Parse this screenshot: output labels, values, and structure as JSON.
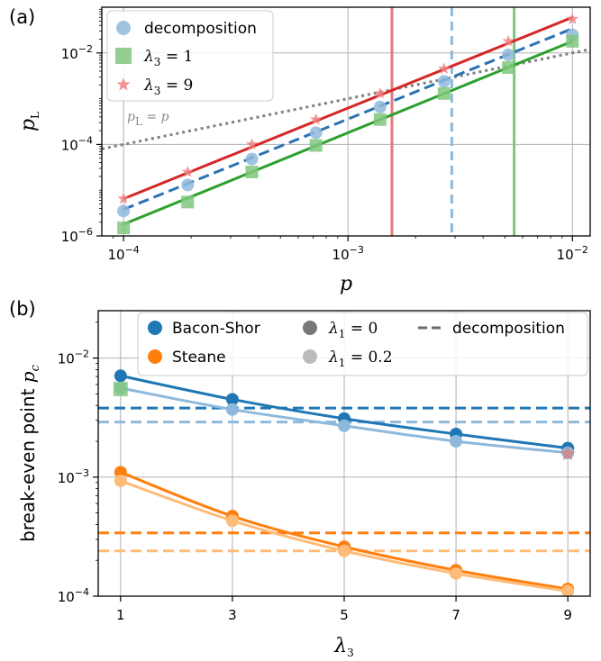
{
  "chart_data": [
    {
      "panel": "(a)",
      "type": "line",
      "scale": "log-log",
      "xlabel": "p",
      "ylabel": "p_L",
      "xlim": [
        8e-05,
        0.012
      ],
      "ylim": [
        1e-06,
        0.1
      ],
      "xticks": [
        {
          "v": 0.0001,
          "label": "10^-4"
        },
        {
          "v": 0.001,
          "label": "10^-3"
        },
        {
          "v": 0.01,
          "label": "10^-2"
        }
      ],
      "yticks": [
        {
          "v": 1e-06,
          "label": "10^-6"
        },
        {
          "v": 0.0001,
          "label": "10^-4"
        },
        {
          "v": 0.01,
          "label": "10^-2"
        }
      ],
      "grid": true,
      "legend_position": "top-left",
      "x": [
        0.0001,
        0.000193,
        0.000373,
        0.00072,
        0.00139,
        0.00268,
        0.00518,
        0.01
      ],
      "series": [
        {
          "name": "decomposition",
          "marker": "circle",
          "color": "#8fb9dc",
          "line_style": "dashed",
          "line_color": "#2a72b3",
          "values": [
            3.5e-06,
            1.3e-05,
            4.8e-05,
            0.00018,
            0.00066,
            0.0024,
            0.0091,
            0.025
          ],
          "fit": [
            [
              0.0001,
              3.8e-06
            ],
            [
              0.01,
              0.034
            ]
          ]
        },
        {
          "name": "λ3 = 1",
          "marker": "square",
          "color": "#7fc77c",
          "line_style": "solid",
          "line_color": "#2ca02c",
          "values": [
            1.5e-06,
            5.5e-06,
            2.5e-05,
            9.5e-05,
            0.00035,
            0.0013,
            0.0048,
            0.018
          ],
          "fit": [
            [
              0.0001,
              1.8e-06
            ],
            [
              0.01,
              0.018
            ]
          ]
        },
        {
          "name": "λ3 = 9",
          "marker": "star",
          "color": "#f08080",
          "line_style": "solid",
          "line_color": "#d62728",
          "values": [
            6.5e-06,
            2.5e-05,
            0.0001,
            0.00035,
            0.0013,
            0.0045,
            0.018,
            0.055
          ],
          "fit": [
            [
              0.0001,
              6.5e-06
            ],
            [
              0.01,
              0.06
            ]
          ]
        }
      ],
      "reference_line": {
        "label": "p_L = p",
        "points": [
          [
            8e-05,
            8e-05
          ],
          [
            0.012,
            0.012
          ]
        ],
        "color": "#7f7f7f",
        "line_style": "dotted"
      },
      "vertical_lines": [
        {
          "x": 0.00157,
          "color": "#e37a7a",
          "line_style": "solid"
        },
        {
          "x": 0.0029,
          "color": "#8fb9dc",
          "line_style": "dashed"
        },
        {
          "x": 0.0055,
          "color": "#7fc77c",
          "line_style": "solid"
        }
      ]
    },
    {
      "panel": "(b)",
      "type": "line",
      "scale": "log-y",
      "xlabel": "λ3",
      "ylabel": "break-even point p_c",
      "xlim": [
        0.6,
        9.4
      ],
      "ylim": [
        0.0001,
        0.025
      ],
      "xticks": [
        {
          "v": 1,
          "label": "1"
        },
        {
          "v": 3,
          "label": "3"
        },
        {
          "v": 5,
          "label": "5"
        },
        {
          "v": 7,
          "label": "7"
        },
        {
          "v": 9,
          "label": "9"
        }
      ],
      "yticks": [
        {
          "v": 0.0001,
          "label": "10^-4"
        },
        {
          "v": 0.001,
          "label": "10^-3"
        },
        {
          "v": 0.01,
          "label": "10^-2"
        }
      ],
      "grid": true,
      "legend_position": "top-right",
      "legend": [
        "Bacon-Shor",
        "Steane",
        "λ1 = 0",
        "λ1 = 0.2",
        "decomposition"
      ],
      "x": [
        1,
        3,
        5,
        7,
        9
      ],
      "series": [
        {
          "name": "Bacon-Shor",
          "variant": "λ1 = 0",
          "color": "#1f77b4",
          "values": [
            0.0071,
            0.0045,
            0.0031,
            0.0023,
            0.00175
          ],
          "decomposition": 0.0038
        },
        {
          "name": "Bacon-Shor",
          "variant": "λ1 = 0.2",
          "color": "#8fb9dc",
          "values": [
            0.0056,
            0.0037,
            0.0027,
            0.002,
            0.0016
          ],
          "decomposition": 0.0029
        },
        {
          "name": "Steane",
          "variant": "λ1 = 0",
          "color": "#ff7f0e",
          "values": [
            0.0011,
            0.00047,
            0.00026,
            0.000165,
            0.000115
          ],
          "decomposition": 0.00034
        },
        {
          "name": "Steane",
          "variant": "λ1 = 0.2",
          "color": "#ffbb78",
          "values": [
            0.00093,
            0.00043,
            0.00024,
            0.000155,
            0.00011
          ],
          "decomposition": 0.00024
        }
      ],
      "highlight_markers": [
        {
          "x": 1,
          "value": 0.0055,
          "marker": "square",
          "color": "#7fc77c"
        },
        {
          "x": 9,
          "value": 0.00157,
          "marker": "star",
          "color": "#e37a7a"
        }
      ]
    }
  ]
}
